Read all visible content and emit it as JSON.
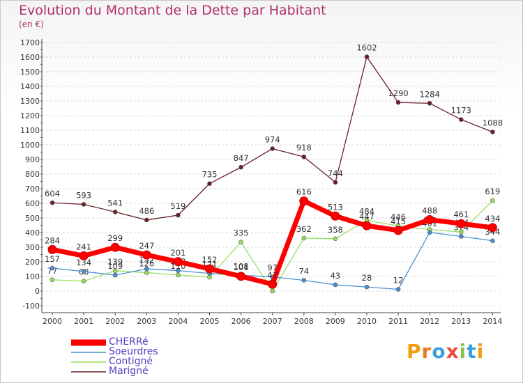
{
  "chart_data": {
    "type": "line",
    "title": "Evolution du Montant de la Dette par Habitant",
    "unit_label": "(en €)",
    "xlabel": "",
    "ylabel": "",
    "ylim": [
      -100,
      1700
    ],
    "y_ticks": [
      -100,
      0,
      100,
      200,
      300,
      400,
      500,
      600,
      700,
      800,
      900,
      1000,
      1100,
      1200,
      1300,
      1400,
      1500,
      1600,
      1700
    ],
    "categories": [
      "2000",
      "2001",
      "2002",
      "2003",
      "2004",
      "2005",
      "2006",
      "2007",
      "2008",
      "2009",
      "2010",
      "2011",
      "2012",
      "2013",
      "2014"
    ],
    "series": [
      {
        "name": "Marigné",
        "color": "#6b1e27",
        "values": [
          604,
          593,
          541,
          486,
          519,
          735,
          847,
          974,
          918,
          744,
          1602,
          1290,
          1284,
          1173,
          1088
        ]
      },
      {
        "name": "Contigné",
        "color": "#99e060",
        "values": [
          77,
          68,
          139,
          126,
          110,
          95,
          335,
          0,
          362,
          358,
          484,
          446,
          421,
          404,
          619
        ]
      },
      {
        "name": "Soeurdres",
        "color": "#4a8fd0",
        "values": [
          157,
          134,
          109,
          152,
          140,
          121,
          108,
          97,
          74,
          43,
          28,
          12,
          401,
          374,
          344
        ]
      },
      {
        "name": "CHERRé",
        "color": "#ff0000",
        "values": [
          284,
          241,
          299,
          247,
          201,
          152,
          101,
          47,
          616,
          513,
          447,
          415,
          488,
          461,
          434
        ]
      }
    ],
    "legend_order": [
      "CHERRé",
      "Soeurdres",
      "Contigné",
      "Marigné"
    ],
    "legend_position": "bottom-left"
  },
  "brand": {
    "logo_text": "Proxiti",
    "letters": [
      "P",
      "r",
      "o",
      "x",
      "i",
      "t",
      "i"
    ],
    "letter_colors": [
      "#f39c12",
      "#e67e22",
      "#3aa0dc",
      "#e74c3c",
      "#8bc34a",
      "#3aa0dc",
      "#f39c12"
    ]
  }
}
